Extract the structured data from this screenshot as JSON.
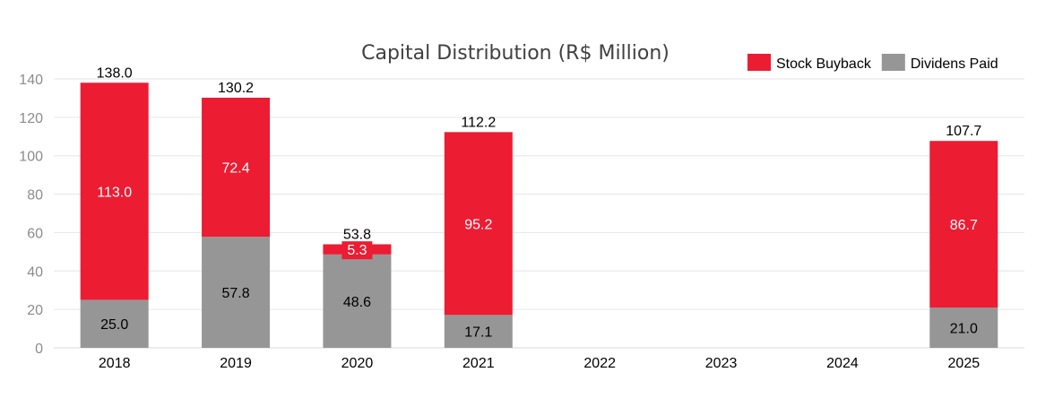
{
  "chart_data": {
    "type": "bar",
    "stacked": true,
    "title": "Capital Distribution (R$ Million)",
    "xlabel": "",
    "ylabel": "",
    "categories": [
      "2018",
      "2019",
      "2020",
      "2021",
      "2022",
      "2023",
      "2024",
      "2025"
    ],
    "series": [
      {
        "name": "Dividens Paid",
        "color": "#969696",
        "label_color": "#000000",
        "values": [
          25.0,
          57.8,
          48.6,
          17.1,
          null,
          null,
          null,
          21.0
        ]
      },
      {
        "name": "Stock Buyback",
        "color": "#ec1c33",
        "label_color": "#ffffff",
        "values": [
          113.0,
          72.4,
          5.3,
          95.2,
          null,
          null,
          null,
          86.7
        ]
      }
    ],
    "totals": [
      138.0,
      130.2,
      53.8,
      112.2,
      null,
      null,
      null,
      107.7
    ],
    "ylim": [
      0,
      140
    ],
    "yticks": [
      0,
      20,
      40,
      60,
      80,
      100,
      120,
      140
    ],
    "grid": true,
    "legend": {
      "position": "top-right",
      "order": [
        "Stock Buyback",
        "Dividens Paid"
      ]
    }
  }
}
